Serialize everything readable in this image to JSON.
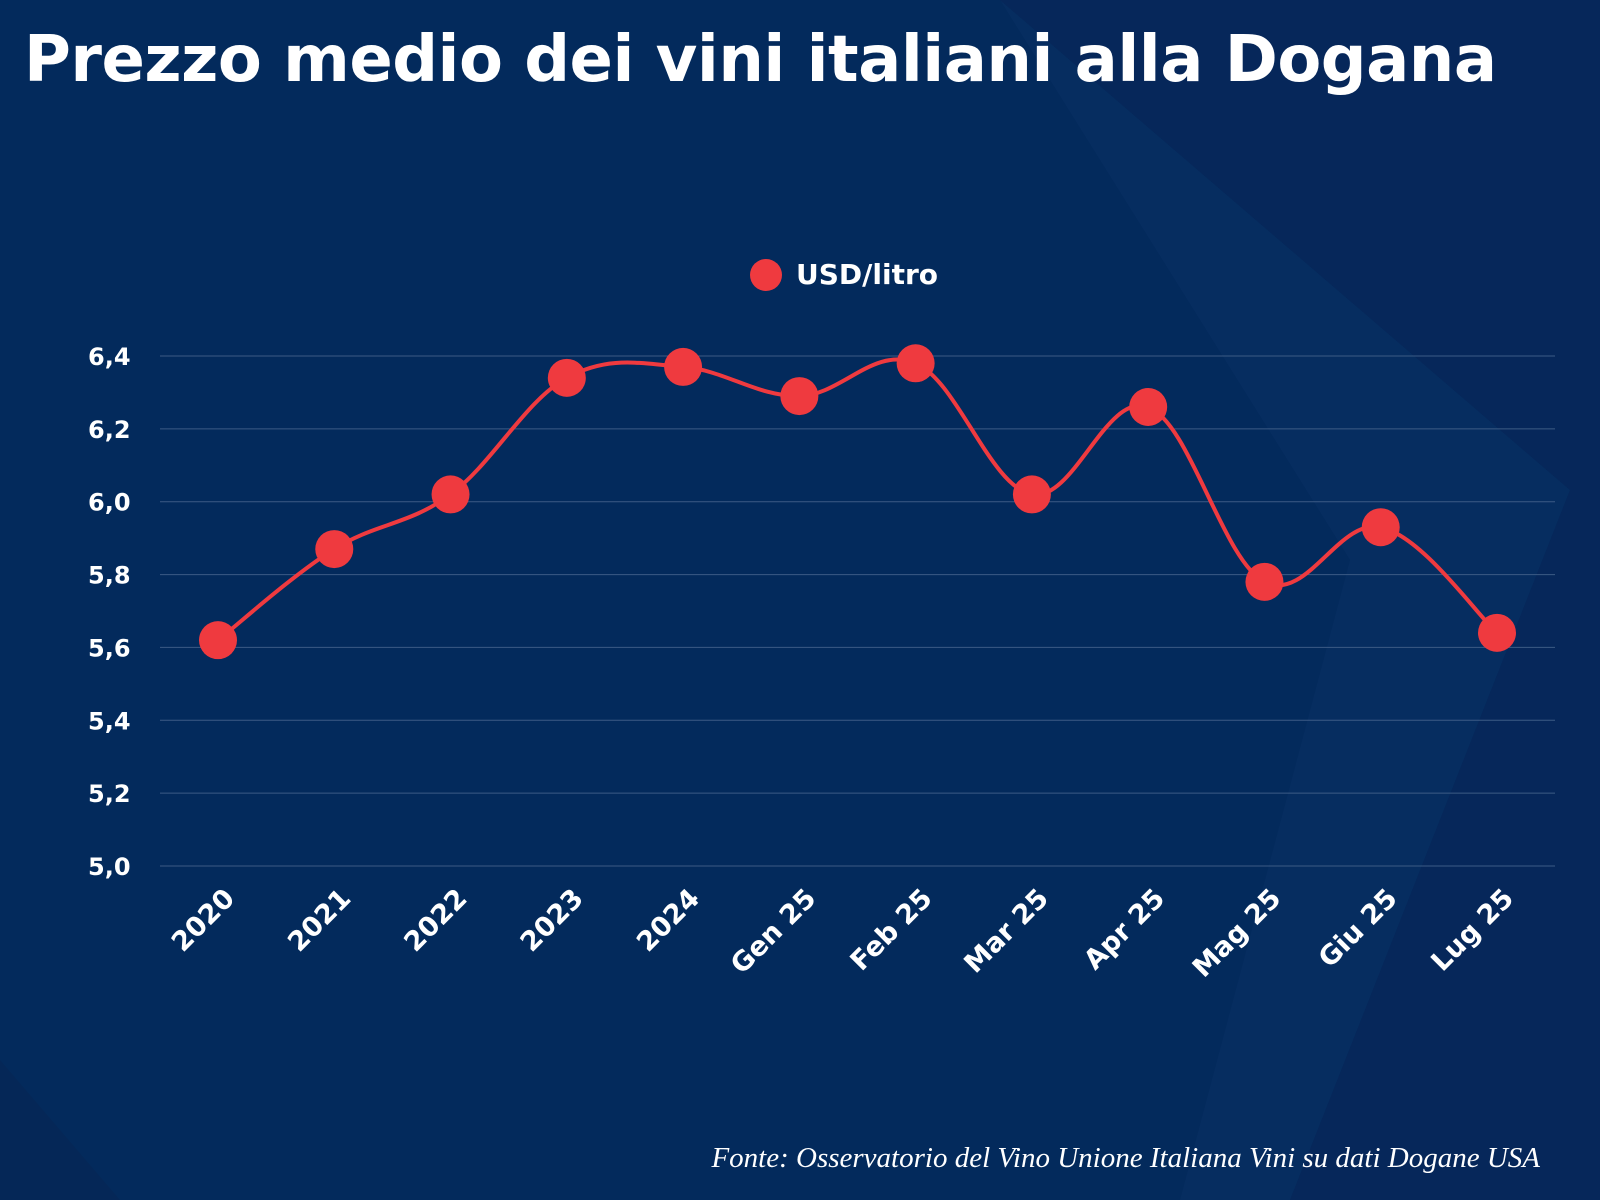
{
  "colors": {
    "background": "#032a5c",
    "series": "#ef3a3f",
    "grid": "#3c5b85",
    "text": "#ffffff"
  },
  "chart_data": {
    "type": "line",
    "title": "Prezzo medio dei vini italiani alla Dogana",
    "x": [
      "2020",
      "2021",
      "2022",
      "2023",
      "2024",
      "Gen 25",
      "Feb 25",
      "Mar 25",
      "Apr 25",
      "Mag 25",
      "Giu 25",
      "Lug 25"
    ],
    "series": [
      {
        "name": "USD/litro",
        "values": [
          5.62,
          5.87,
          6.02,
          6.34,
          6.37,
          6.29,
          6.38,
          6.02,
          6.26,
          5.78,
          5.93,
          5.64
        ]
      }
    ],
    "ylim": [
      5.0,
      6.4
    ],
    "yticks": [
      "5,0",
      "5,2",
      "5,4",
      "5,6",
      "5,8",
      "6,0",
      "6,2",
      "6,4"
    ],
    "grid": true,
    "smooth": true,
    "legend_position": "top-center",
    "source": "Fonte: Osservatorio del Vino Unione Italiana Vini su dati Dogane USA"
  }
}
